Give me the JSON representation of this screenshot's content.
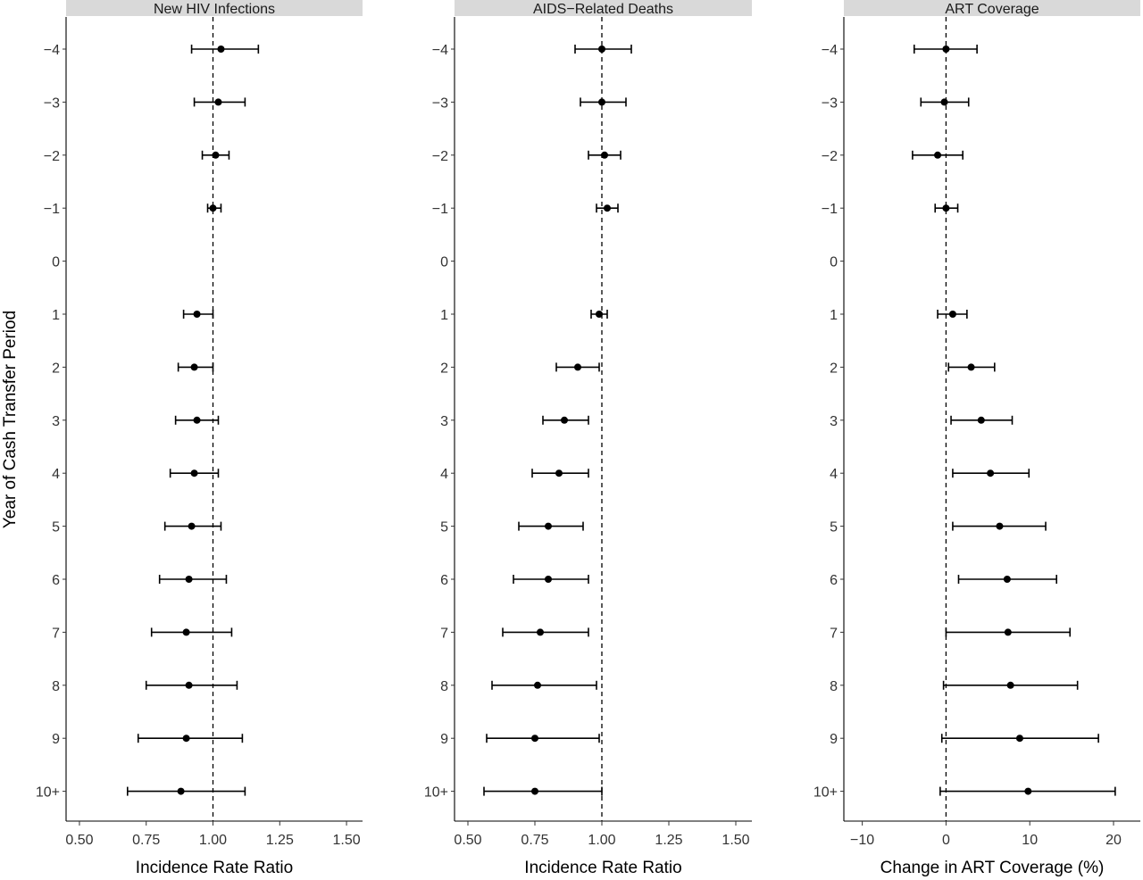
{
  "figure": {
    "y_axis_title": "Year of Cash Transfer Period",
    "y_categories": [
      "-4",
      "-3",
      "-2",
      "-1",
      "0",
      "1",
      "2",
      "3",
      "4",
      "5",
      "6",
      "7",
      "8",
      "9",
      "10+"
    ]
  },
  "chart_data": [
    {
      "type": "scatter",
      "subtype": "forest-plot",
      "title": "New HIV Infections",
      "xlabel": "Incidence Rate Ratio",
      "ylabel": "Year of Cash Transfer Period",
      "xlim": [
        0.45,
        1.56
      ],
      "xticks": [
        0.5,
        0.75,
        1.0,
        1.25,
        1.5
      ],
      "xtick_labels": [
        "0.50",
        "0.75",
        "1.00",
        "1.25",
        "1.50"
      ],
      "reference_line": 1.0,
      "grid": false,
      "categories": [
        "-4",
        "-3",
        "-2",
        "-1",
        "0",
        "1",
        "2",
        "3",
        "4",
        "5",
        "6",
        "7",
        "8",
        "9",
        "10+"
      ],
      "estimates": [
        1.03,
        1.02,
        1.01,
        1.0,
        null,
        0.94,
        0.93,
        0.94,
        0.93,
        0.92,
        0.91,
        0.9,
        0.91,
        0.9,
        0.88
      ],
      "lower": [
        0.92,
        0.93,
        0.96,
        0.98,
        null,
        0.89,
        0.87,
        0.86,
        0.84,
        0.82,
        0.8,
        0.77,
        0.75,
        0.72,
        0.68
      ],
      "upper": [
        1.17,
        1.12,
        1.06,
        1.03,
        null,
        1.0,
        1.0,
        1.02,
        1.02,
        1.03,
        1.05,
        1.07,
        1.09,
        1.11,
        1.12
      ]
    },
    {
      "type": "scatter",
      "subtype": "forest-plot",
      "title": "AIDS−Related Deaths",
      "xlabel": "Incidence Rate Ratio",
      "ylabel": "Year of Cash Transfer Period",
      "xlim": [
        0.45,
        1.56
      ],
      "xticks": [
        0.5,
        0.75,
        1.0,
        1.25,
        1.5
      ],
      "xtick_labels": [
        "0.50",
        "0.75",
        "1.00",
        "1.25",
        "1.50"
      ],
      "reference_line": 1.0,
      "grid": false,
      "categories": [
        "-4",
        "-3",
        "-2",
        "-1",
        "0",
        "1",
        "2",
        "3",
        "4",
        "5",
        "6",
        "7",
        "8",
        "9",
        "10+"
      ],
      "estimates": [
        1.0,
        1.0,
        1.01,
        1.02,
        null,
        0.99,
        0.91,
        0.86,
        0.84,
        0.8,
        0.8,
        0.77,
        0.76,
        0.75,
        0.75
      ],
      "lower": [
        0.9,
        0.92,
        0.95,
        0.98,
        null,
        0.96,
        0.83,
        0.78,
        0.74,
        0.69,
        0.67,
        0.63,
        0.59,
        0.57,
        0.56
      ],
      "upper": [
        1.11,
        1.09,
        1.07,
        1.06,
        null,
        1.02,
        0.99,
        0.95,
        0.95,
        0.93,
        0.95,
        0.95,
        0.98,
        0.99,
        1.0
      ]
    },
    {
      "type": "scatter",
      "subtype": "forest-plot",
      "title": "ART Coverage",
      "xlabel": "Change in ART Coverage (%)",
      "ylabel": "Year of Cash Transfer Period",
      "xlim": [
        -12.2,
        23.2
      ],
      "xticks": [
        -10,
        0,
        10,
        20
      ],
      "xtick_labels": [
        "−10",
        "0",
        "10",
        "20"
      ],
      "reference_line": 0,
      "grid": false,
      "categories": [
        "-4",
        "-3",
        "-2",
        "-1",
        "0",
        "1",
        "2",
        "3",
        "4",
        "5",
        "6",
        "7",
        "8",
        "9",
        "10+"
      ],
      "estimates": [
        0.0,
        -0.2,
        -1.0,
        0.0,
        null,
        0.8,
        3.0,
        4.2,
        5.3,
        6.4,
        7.3,
        7.4,
        7.7,
        8.8,
        9.8
      ],
      "lower": [
        -3.8,
        -3.0,
        -4.0,
        -1.3,
        null,
        -1.0,
        0.3,
        0.6,
        0.8,
        0.8,
        1.5,
        0.0,
        -0.3,
        -0.5,
        -0.7
      ],
      "upper": [
        3.7,
        2.7,
        2.0,
        1.4,
        null,
        2.5,
        5.8,
        7.9,
        9.9,
        11.9,
        13.2,
        14.8,
        15.7,
        18.2,
        20.2
      ]
    }
  ]
}
